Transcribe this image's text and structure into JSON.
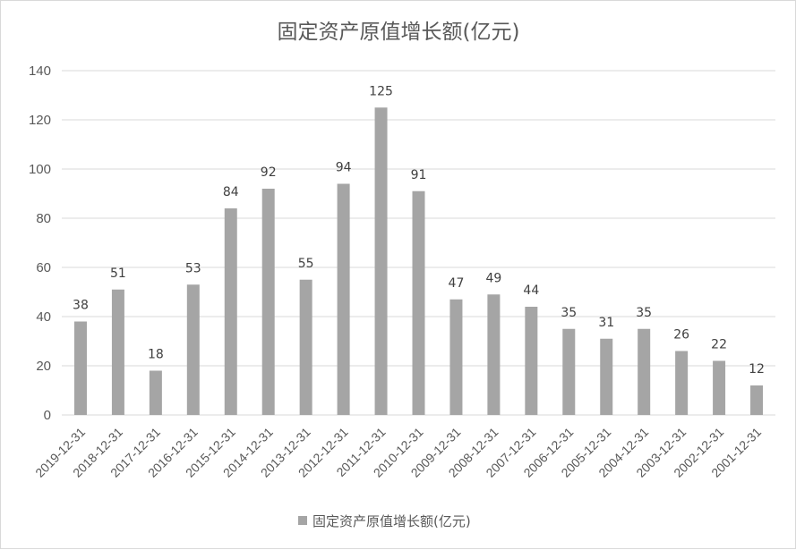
{
  "chart_data": {
    "type": "bar",
    "title": "固定资产原值增长额(亿元)",
    "categories": [
      "2019-12-31",
      "2018-12-31",
      "2017-12-31",
      "2016-12-31",
      "2015-12-31",
      "2014-12-31",
      "2013-12-31",
      "2012-12-31",
      "2011-12-31",
      "2010-12-31",
      "2009-12-31",
      "2008-12-31",
      "2007-12-31",
      "2006-12-31",
      "2005-12-31",
      "2004-12-31",
      "2003-12-31",
      "2002-12-31",
      "2001-12-31"
    ],
    "series": [
      {
        "name": "固定资产原值增长额(亿元)",
        "values": [
          38,
          51,
          18,
          53,
          84,
          92,
          55,
          94,
          125,
          91,
          47,
          49,
          44,
          35,
          31,
          35,
          26,
          22,
          12
        ],
        "labels": [
          "38",
          "51",
          "18",
          "53",
          "84",
          "92",
          "55",
          "94",
          "125",
          "91",
          "47",
          "49",
          "44",
          "35",
          "31",
          "35",
          "26",
          "22",
          "12"
        ]
      }
    ],
    "ylim": [
      0,
      140
    ],
    "yticks": [
      "0",
      "20",
      "40",
      "60",
      "80",
      "100",
      "120",
      "140"
    ],
    "grid": true,
    "legend_position": "bottom",
    "colors": {
      "bar": "#a5a5a5",
      "grid": "#d9d9d9",
      "text": "#595959"
    }
  }
}
